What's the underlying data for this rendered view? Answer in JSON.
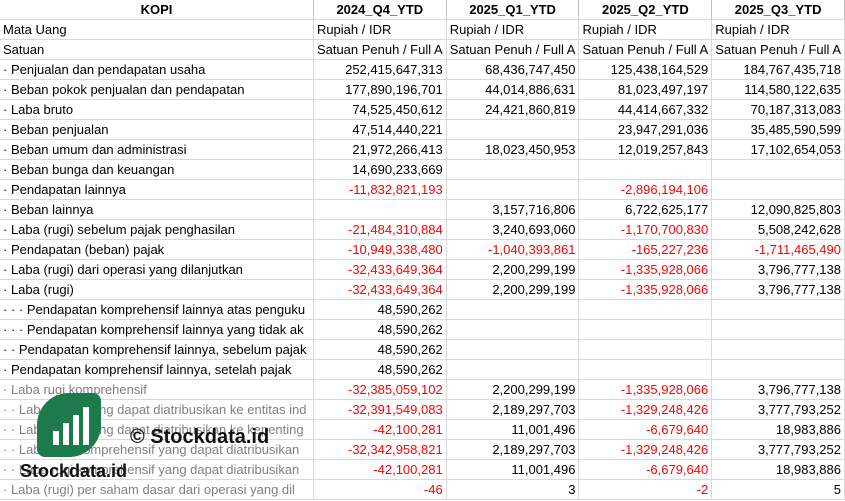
{
  "header": [
    "KOPI",
    "2024_Q4_YTD",
    "2025_Q1_YTD",
    "2025_Q2_YTD",
    "2025_Q3_YTD"
  ],
  "rows": [
    {
      "label": "Mata Uang",
      "vals": [
        "Rupiah / IDR",
        "Rupiah / IDR",
        "Rupiah / IDR",
        "Rupiah / IDR"
      ],
      "text": true
    },
    {
      "label": "Satuan",
      "vals": [
        "Satuan Penuh / Full A",
        "Satuan Penuh / Full A",
        "Satuan Penuh / Full A",
        "Satuan Penuh / Full A"
      ],
      "text": true
    },
    {
      "label": "· Penjualan dan pendapatan usaha",
      "vals": [
        "252,415,647,313",
        "68,436,747,450",
        "125,438,164,529",
        "184,767,435,718"
      ]
    },
    {
      "label": "· Beban pokok penjualan dan pendapatan",
      "vals": [
        "177,890,196,701",
        "44,014,886,631",
        "81,023,497,197",
        "114,580,122,635"
      ]
    },
    {
      "label": "· Laba bruto",
      "vals": [
        "74,525,450,612",
        "24,421,860,819",
        "44,414,667,332",
        "70,187,313,083"
      ]
    },
    {
      "label": "· Beban penjualan",
      "vals": [
        "47,514,440,221",
        "",
        "23,947,291,036",
        "35,485,590,599"
      ]
    },
    {
      "label": "· Beban umum dan administrasi",
      "vals": [
        "21,972,266,413",
        "18,023,450,953",
        "12,019,257,843",
        "17,102,654,053"
      ]
    },
    {
      "label": "· Beban bunga dan keuangan",
      "vals": [
        "14,690,233,669",
        "",
        "",
        ""
      ]
    },
    {
      "label": "· Pendapatan lainnya",
      "vals": [
        "-11,832,821,193",
        "",
        "-2,896,194,106",
        ""
      ]
    },
    {
      "label": "· Beban lainnya",
      "vals": [
        "",
        "3,157,716,806",
        "6,722,625,177",
        "12,090,825,803"
      ]
    },
    {
      "label": "· Laba (rugi) sebelum pajak penghasilan",
      "vals": [
        "-21,484,310,884",
        "3,240,693,060",
        "-1,170,700,830",
        "5,508,242,628"
      ]
    },
    {
      "label": "· Pendapatan (beban) pajak",
      "vals": [
        "-10,949,338,480",
        "-1,040,393,861",
        "-165,227,236",
        "-1,711,465,490"
      ]
    },
    {
      "label": "· Laba (rugi) dari operasi yang dilanjutkan",
      "vals": [
        "-32,433,649,364",
        "2,200,299,199",
        "-1,335,928,066",
        "3,796,777,138"
      ]
    },
    {
      "label": "· Laba (rugi)",
      "vals": [
        "-32,433,649,364",
        "2,200,299,199",
        "-1,335,928,066",
        "3,796,777,138"
      ]
    },
    {
      "label": "· · · Pendapatan komprehensif lainnya atas penguku",
      "vals": [
        "48,590,262",
        "",
        "",
        ""
      ]
    },
    {
      "label": "· · · Pendapatan komprehensif lainnya yang tidak ak",
      "vals": [
        "48,590,262",
        "",
        "",
        ""
      ]
    },
    {
      "label": "· · Pendapatan komprehensif lainnya, sebelum pajak",
      "vals": [
        "48,590,262",
        "",
        "",
        ""
      ]
    },
    {
      "label": "· Pendapatan komprehensif lainnya, setelah pajak",
      "vals": [
        "48,590,262",
        "",
        "",
        ""
      ]
    },
    {
      "label": "· Laba rugi komprehensif",
      "vals": [
        "-32,385,059,102",
        "2,200,299,199",
        "-1,335,928,066",
        "3,796,777,138"
      ],
      "gray": true
    },
    {
      "label": "· · Laba (rugi) yang dapat diatribusikan ke entitas ind",
      "vals": [
        "-32,391,549,083",
        "2,189,297,703",
        "-1,329,248,426",
        "3,777,793,252"
      ],
      "gray": true
    },
    {
      "label": "· · Laba (rugi) yang dapat diatribusikan ke kepenting",
      "vals": [
        "-42,100,281",
        "11,001,496",
        "-6,679,640",
        "18,983,886"
      ],
      "gray": true
    },
    {
      "label": "· · Laba rugi komprehensif yang dapat diatribusikan",
      "vals": [
        "-32,342,958,821",
        "2,189,297,703",
        "-1,329,248,426",
        "3,777,793,252"
      ],
      "gray": true
    },
    {
      "label": "· · Laba rugi komprehensif yang dapat diatribusikan",
      "vals": [
        "-42,100,281",
        "11,001,496",
        "-6,679,640",
        "18,983,886"
      ],
      "gray": true
    },
    {
      "label": "· Laba (rugi) per saham dasar dari operasi yang dil",
      "vals": [
        "-46",
        "3",
        "-2",
        "5"
      ],
      "gray": true
    }
  ],
  "watermark": {
    "text1": "© Stockdata.id",
    "text2": "Stockdata.id"
  }
}
